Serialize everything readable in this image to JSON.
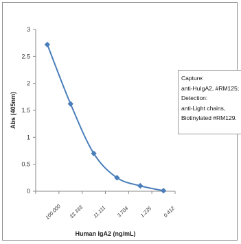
{
  "chart_data": {
    "type": "line",
    "x": [
      "100.000",
      "33.333",
      "11.111",
      "3.704",
      "1.235",
      "0.412"
    ],
    "values": [
      2.72,
      1.62,
      0.7,
      0.25,
      0.1,
      0.01
    ],
    "xlabel": "Human IgA2 (ng/mL)",
    "ylabel": "Abs (405nm)",
    "ylim": [
      0,
      3
    ],
    "yticks": [
      "0",
      "0.5",
      "1",
      "1.5",
      "2",
      "2.5",
      "3"
    ],
    "grid": false,
    "series_color": "#4a7ebb",
    "annotation": [
      "Capture:",
      "anti-HuIgA2, #RM125;",
      "Detection:",
      "anti-Light chains,",
      "Biotinylated #RM129."
    ]
  }
}
